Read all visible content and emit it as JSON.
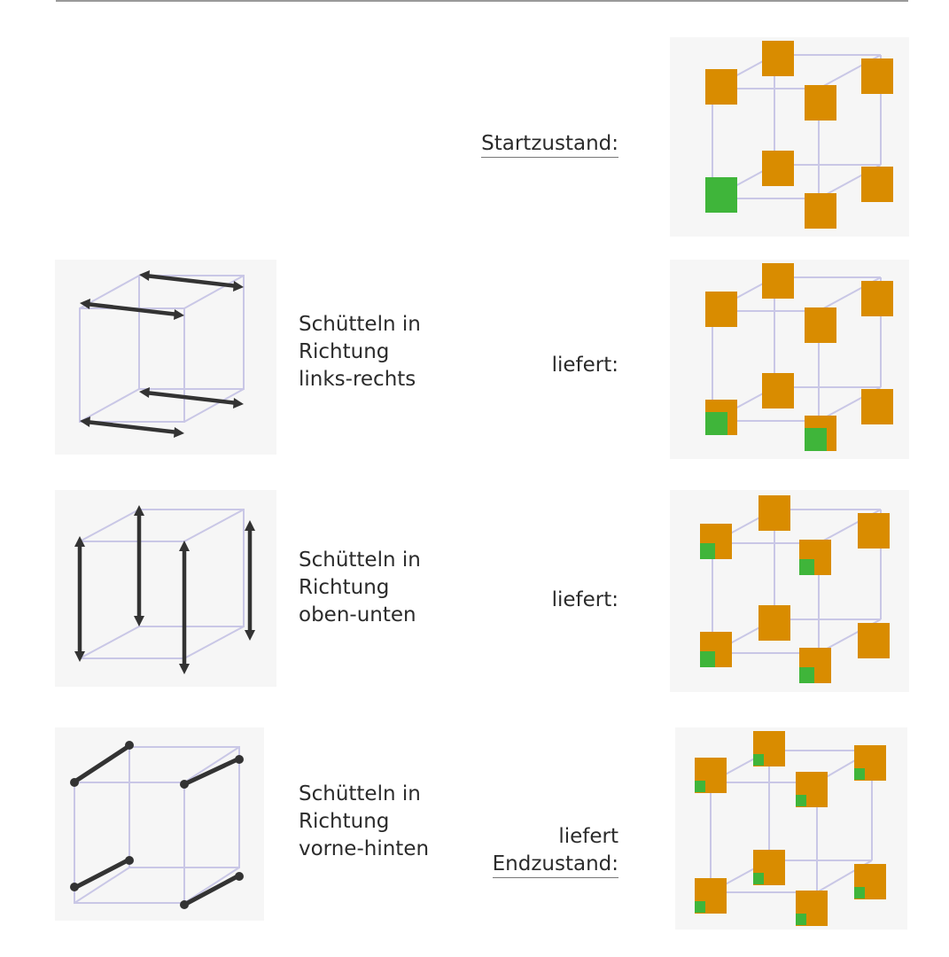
{
  "rows": [
    {
      "id": "start",
      "action": [],
      "result": [
        "Startzustand:"
      ],
      "result_underlined": [
        true
      ]
    },
    {
      "id": "lr",
      "action": [
        "Schütteln in",
        "Richtung",
        "links-rechts"
      ],
      "result": [
        "liefert:"
      ],
      "result_underlined": [
        false
      ]
    },
    {
      "id": "ou",
      "action": [
        "Schütteln in",
        "Richtung",
        "oben-unten"
      ],
      "result": [
        "liefert:"
      ],
      "result_underlined": [
        false
      ]
    },
    {
      "id": "vh",
      "action": [
        "Schütteln in",
        "Richtung",
        "vorne-hinten"
      ],
      "result": [
        "liefert",
        "Endzustand:"
      ],
      "result_underlined": [
        false,
        true
      ]
    }
  ],
  "colors": {
    "cube_edge": "#c9c7e6",
    "arrow": "#333333",
    "orange_square": "#d98c00",
    "green_square": "#3fb53a",
    "panel_bg": "#f6f6f6"
  }
}
